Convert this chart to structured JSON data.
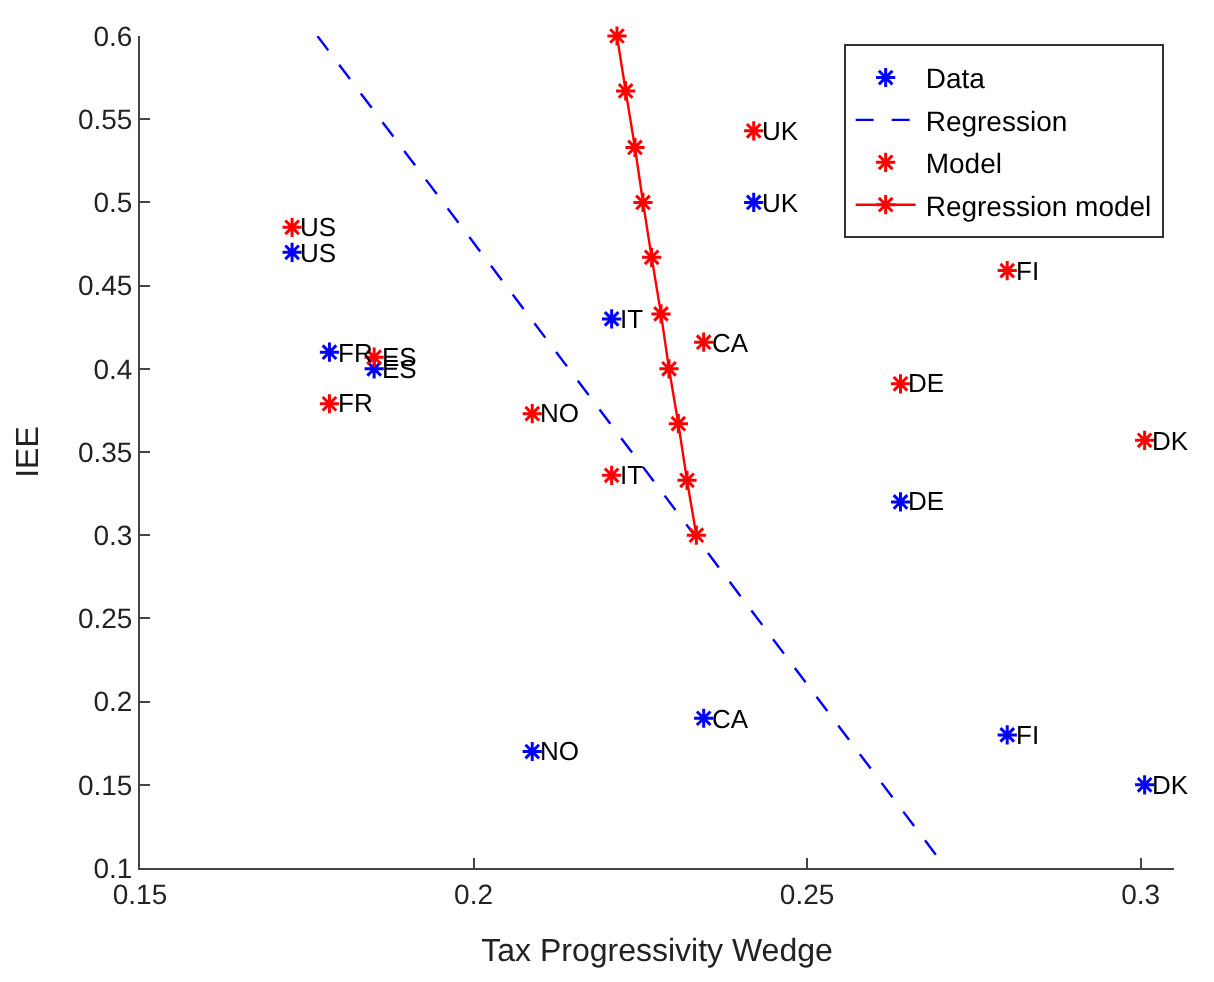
{
  "chart_data": {
    "type": "scatter",
    "xlabel": "Tax Progressivity Wedge",
    "ylabel": "IEE",
    "xlim": [
      0.15,
      0.305
    ],
    "ylim": [
      0.1,
      0.6
    ],
    "xticks": [
      0.15,
      0.2,
      0.25,
      0.3
    ],
    "yticks": [
      0.1,
      0.15,
      0.2,
      0.25,
      0.3,
      0.35,
      0.4,
      0.45,
      0.5,
      0.55,
      0.6
    ],
    "legend": "top right",
    "marker": "cross",
    "series": [
      {
        "name": "Data",
        "color": "#0000ff",
        "x": [
          0.1728,
          0.1784,
          0.1851,
          0.2207,
          0.242,
          0.2345,
          0.2088,
          0.264,
          0.28,
          0.3006
        ],
        "values": [
          0.47,
          0.41,
          0.4,
          0.43,
          0.5,
          0.19,
          0.17,
          0.32,
          0.18,
          0.15
        ]
      },
      {
        "name": "Regression",
        "type": "line",
        "color": "#0000ff",
        "marker": "none",
        "line_style": "dashed",
        "x": [
          0.1766,
          0.2708
        ],
        "values": [
          0.6,
          0.1
        ]
      },
      {
        "name": "Model",
        "color": "#ff0000",
        "x": [
          0.1728,
          0.1784,
          0.1851,
          0.2207,
          0.242,
          0.2345,
          0.2088,
          0.264,
          0.28,
          0.3006
        ],
        "values": [
          0.485,
          0.379,
          0.407,
          0.336,
          0.543,
          0.416,
          0.373,
          0.391,
          0.459,
          0.357
        ]
      },
      {
        "name": "Regression model",
        "type": "line",
        "color": "#ff0000",
        "line_style": "solid",
        "x": [
          0.2215,
          0.2228,
          0.2242,
          0.2254,
          0.2267,
          0.2281,
          0.2293,
          0.2307,
          0.232,
          0.2334
        ],
        "values": [
          0.6,
          0.567,
          0.533,
          0.5,
          0.467,
          0.433,
          0.4,
          0.367,
          0.333,
          0.3
        ]
      }
    ],
    "annotations": [
      {
        "text": "US",
        "x": 0.1728,
        "y": 0.47
      },
      {
        "text": "FR",
        "x": 0.1784,
        "y": 0.41
      },
      {
        "text": "ES",
        "x": 0.1851,
        "y": 0.4
      },
      {
        "text": "IT",
        "x": 0.2207,
        "y": 0.43
      },
      {
        "text": "UK",
        "x": 0.242,
        "y": 0.5
      },
      {
        "text": "CA",
        "x": 0.2345,
        "y": 0.19
      },
      {
        "text": "NO",
        "x": 0.2088,
        "y": 0.17
      },
      {
        "text": "DE",
        "x": 0.264,
        "y": 0.32
      },
      {
        "text": "FI",
        "x": 0.28,
        "y": 0.18
      },
      {
        "text": "DK",
        "x": 0.3006,
        "y": 0.15
      },
      {
        "text": "US",
        "x": 0.1728,
        "y": 0.485
      },
      {
        "text": "FR",
        "x": 0.1784,
        "y": 0.379
      },
      {
        "text": "ES",
        "x": 0.1851,
        "y": 0.407
      },
      {
        "text": "IT",
        "x": 0.2207,
        "y": 0.336
      },
      {
        "text": "UK",
        "x": 0.242,
        "y": 0.543
      },
      {
        "text": "CA",
        "x": 0.2345,
        "y": 0.416
      },
      {
        "text": "NO",
        "x": 0.2088,
        "y": 0.373
      },
      {
        "text": "DE",
        "x": 0.264,
        "y": 0.391
      },
      {
        "text": "FI",
        "x": 0.28,
        "y": 0.459
      },
      {
        "text": "DK",
        "x": 0.3006,
        "y": 0.357
      }
    ]
  }
}
